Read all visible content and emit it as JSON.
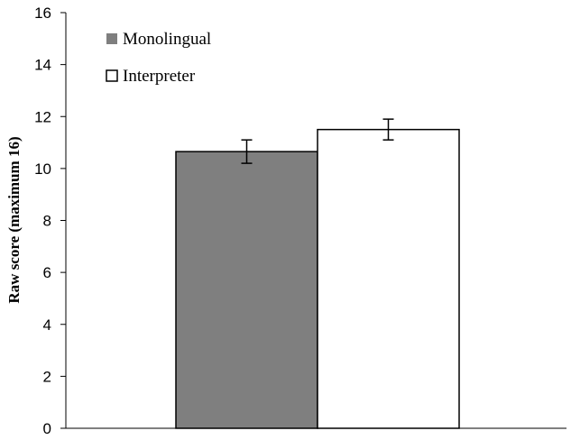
{
  "chart_data": {
    "type": "bar",
    "title": "",
    "xlabel": "",
    "ylabel": "Raw score (maximum 16)",
    "ylim": [
      0,
      16
    ],
    "yticks": [
      0,
      2,
      4,
      6,
      8,
      10,
      12,
      14,
      16
    ],
    "grid": false,
    "legend_position": "top-left",
    "series": [
      {
        "name": "Monolingual",
        "value": 10.65,
        "error": 0.45,
        "color": "#7f7f7f"
      },
      {
        "name": "Interpreter",
        "value": 11.5,
        "error": 0.4,
        "color": "#ffffff"
      }
    ]
  }
}
